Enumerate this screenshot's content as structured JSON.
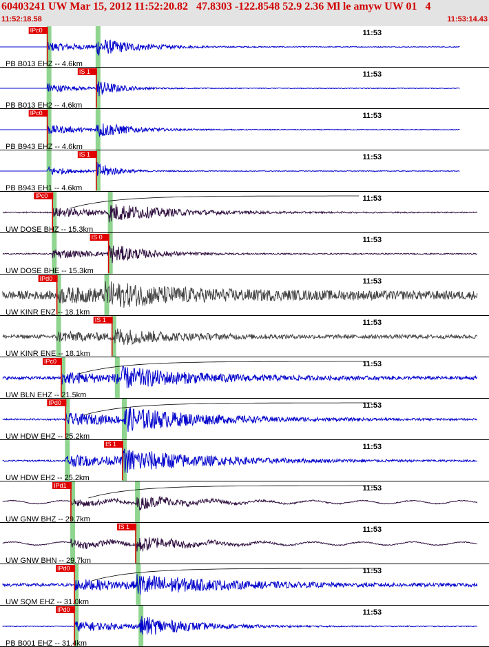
{
  "header": {
    "title": "60403241 UW Mar 15, 2012 11:52:20.82   47.8303 -122.8548 52.9 2.36 Ml le amyw UW 01   4",
    "start_time": "11:52:18.58",
    "end_time": "11:53:14.43"
  },
  "chart_data": {
    "type": "line",
    "title": "60403241 UW Mar 15, 2012 11:52:20.82   47.8303 -122.8548 52.9 2.36 Ml le amyw UW 01   4",
    "x_range": [
      "11:52:18.58",
      "11:53:14.43"
    ],
    "x_tick_label": "11:53",
    "x_tick_seconds": 41.42,
    "duration_seconds": 55.85,
    "colors": {
      "blue_trace": "#0000cc",
      "gray_trace": "#444444",
      "purple_trace": "#301040",
      "pick": "#e00000",
      "pick_window": "#8fd48f"
    },
    "traces": [
      {
        "label": "PB B013 EHZ -- 4.6km",
        "color": "blue",
        "p": 5.4,
        "s": 11.0,
        "pick_label": "IPc0",
        "pick_at": "p",
        "amp": 0.4,
        "noise": 0.02,
        "dur": 15,
        "freq": 28,
        "flat": true
      },
      {
        "label": "PB B013 EH2 -- 4.6km",
        "color": "blue",
        "p": 5.4,
        "s": 11.0,
        "pick_label": "IS 1",
        "pick_at": "s",
        "amp": 0.45,
        "noise": 0.02,
        "dur": 8,
        "freq": 28,
        "flat": true
      },
      {
        "label": "PB B943 EHZ -- 4.6km",
        "color": "blue",
        "p": 5.4,
        "s": 11.0,
        "pick_label": "IPc0",
        "pick_at": "p",
        "amp": 0.4,
        "noise": 0.02,
        "dur": 12,
        "freq": 28,
        "flat": true
      },
      {
        "label": "PB B943 EH1 -- 4.6km",
        "color": "blue",
        "p": 5.4,
        "s": 11.0,
        "pick_label": "IS 1",
        "pick_at": "s",
        "amp": 0.45,
        "noise": 0.02,
        "dur": 7,
        "freq": 28,
        "flat": true
      },
      {
        "label": "UW DOSE BHZ -- 15.3km",
        "color": "purple",
        "p": 6.0,
        "s": 12.4,
        "pick_label": "IPc0",
        "pick_at": "p",
        "amp": 0.4,
        "noise": 0.03,
        "dur": 22,
        "freq": 22,
        "coda": true
      },
      {
        "label": "UW DOSE BHE -- 15.3km",
        "color": "purple",
        "p": 6.0,
        "s": 12.4,
        "pick_label": "IS 0",
        "pick_at": "s",
        "amp": 0.45,
        "noise": 0.03,
        "dur": 14,
        "freq": 22
      },
      {
        "label": "UW KINR ENZ -- 18.1km",
        "color": "gray",
        "p": 6.5,
        "s": 12.0,
        "pick_label": "IPd0",
        "pick_at": "p",
        "amp": 0.4,
        "noise": 0.22,
        "dur": 30,
        "freq": 25
      },
      {
        "label": "UW KINR ENE -- 18.1km",
        "color": "gray",
        "p": 6.5,
        "s": 12.8,
        "pick_label": "IS 1",
        "pick_at": "s",
        "amp": 0.35,
        "noise": 0.1,
        "dur": 20,
        "freq": 25
      },
      {
        "label": "UW BLN EHZ -- 21.5km",
        "color": "blue",
        "p": 7.0,
        "s": 13.2,
        "pick_label": "IPc0",
        "pick_at": "p",
        "amp": 0.45,
        "noise": 0.08,
        "dur": 28,
        "freq": 25,
        "coda": true
      },
      {
        "label": "UW HDW EHZ -- 25.2km",
        "color": "blue",
        "p": 7.5,
        "s": 14.0,
        "pick_label": "IPd0",
        "pick_at": "p",
        "amp": 0.5,
        "noise": 0.04,
        "dur": 30,
        "freq": 25,
        "coda": true
      },
      {
        "label": "UW HDW EH2 -- 25.2km",
        "color": "blue",
        "p": 7.5,
        "s": 14.0,
        "pick_label": "IS 1",
        "pick_at": "s",
        "amp": 0.5,
        "noise": 0.04,
        "dur": 30,
        "freq": 25,
        "clip": true
      },
      {
        "label": "UW GNW BHZ -- 29.7km",
        "color": "purple",
        "p": 8.1,
        "s": 15.5,
        "pick_label": "IPd1",
        "pick_at": "p",
        "amp": 0.3,
        "noise": 0.02,
        "dur": 20,
        "freq": 18,
        "swell": true,
        "coda": true
      },
      {
        "label": "UW GNW BHN -- 29.7km",
        "color": "purple",
        "p": 8.1,
        "s": 15.5,
        "pick_label": "IS 1",
        "pick_at": "s",
        "amp": 0.35,
        "noise": 0.02,
        "dur": 20,
        "freq": 18,
        "swell": true
      },
      {
        "label": "UW SQM EHZ -- 31.0km",
        "color": "blue",
        "p": 8.5,
        "s": 15.6,
        "pick_label": "IPd0",
        "pick_at": "p",
        "amp": 0.4,
        "noise": 0.08,
        "dur": 30,
        "freq": 25,
        "coda": true
      },
      {
        "label": "PB B001 EHZ -- 31.4km",
        "color": "blue",
        "p": 8.5,
        "s": 15.9,
        "pick_label": "IPd0",
        "pick_at": "p",
        "amp": 0.45,
        "noise": 0.02,
        "dur": 20,
        "freq": 28
      }
    ]
  }
}
